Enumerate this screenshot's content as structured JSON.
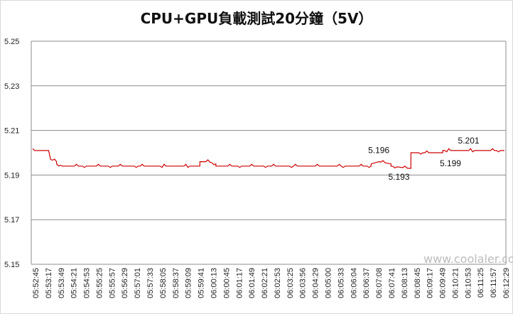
{
  "chart_data": {
    "type": "line",
    "title": "CPU+GPU負載測試20分鐘（5V）",
    "ylim": [
      5.15,
      5.25
    ],
    "yticks": [
      "5.15",
      "5.17",
      "5.19",
      "5.21",
      "5.23",
      "5.25"
    ],
    "grid": "horizontal",
    "legend": "none",
    "color": "#cc0000",
    "xticks": [
      "05:52:45",
      "05:53:17",
      "05:53:49",
      "05:54:21",
      "05:54:53",
      "05:55:25",
      "05:55:57",
      "05:56:29",
      "05:57:01",
      "05:57:33",
      "05:58:05",
      "05:58:37",
      "05:59:09",
      "05:59:41",
      "06:00:13",
      "06:00:45",
      "06:01:17",
      "06:01:49",
      "06:02:21",
      "06:02:53",
      "06:03:25",
      "06:03:56",
      "06:04:29",
      "06:05:00",
      "06:05:33",
      "06:06:04",
      "06:06:37",
      "06:07:08",
      "06:07:41",
      "06:08:13",
      "06:08:45",
      "06:09:17",
      "06:09:49",
      "06:10:21",
      "06:10:53",
      "06:11:25",
      "06:11:57",
      "06:12:29"
    ],
    "series_segments": [
      {
        "x": [
          0,
          8
        ],
        "y": [
          5.201,
          5.201
        ]
      },
      {
        "x": [
          8,
          9,
          12
        ],
        "y": [
          5.201,
          5.197,
          5.196
        ]
      },
      {
        "x": [
          12,
          15,
          84
        ],
        "y": [
          5.195,
          5.194,
          5.194
        ]
      },
      {
        "x": [
          84,
          88,
          92
        ],
        "y": [
          5.196,
          5.196,
          5.195
        ]
      },
      {
        "x": [
          92,
          170
        ],
        "y": [
          5.194,
          5.194
        ]
      },
      {
        "x": [
          170,
          174,
          180
        ],
        "y": [
          5.195,
          5.196,
          5.195
        ]
      },
      {
        "x": [
          180,
          189,
          190
        ],
        "y": [
          5.194,
          5.193,
          5.193
        ]
      },
      {
        "x": [
          190,
          191,
          206
        ],
        "y": [
          5.2,
          5.2,
          5.2
        ]
      },
      {
        "x": [
          206,
          208,
          237
        ],
        "y": [
          5.201,
          5.201,
          5.201
        ]
      }
    ],
    "x_count": 237,
    "annotations": [
      {
        "text": "5.196",
        "x": 176,
        "y": 5.196
      },
      {
        "text": "5.193",
        "x": 189,
        "y": 5.193
      },
      {
        "text": "5.199",
        "x": 212,
        "y": 5.199
      },
      {
        "text": "5.201",
        "x": 224,
        "y": 5.201
      }
    ]
  },
  "watermark": "www.coolaler.com"
}
